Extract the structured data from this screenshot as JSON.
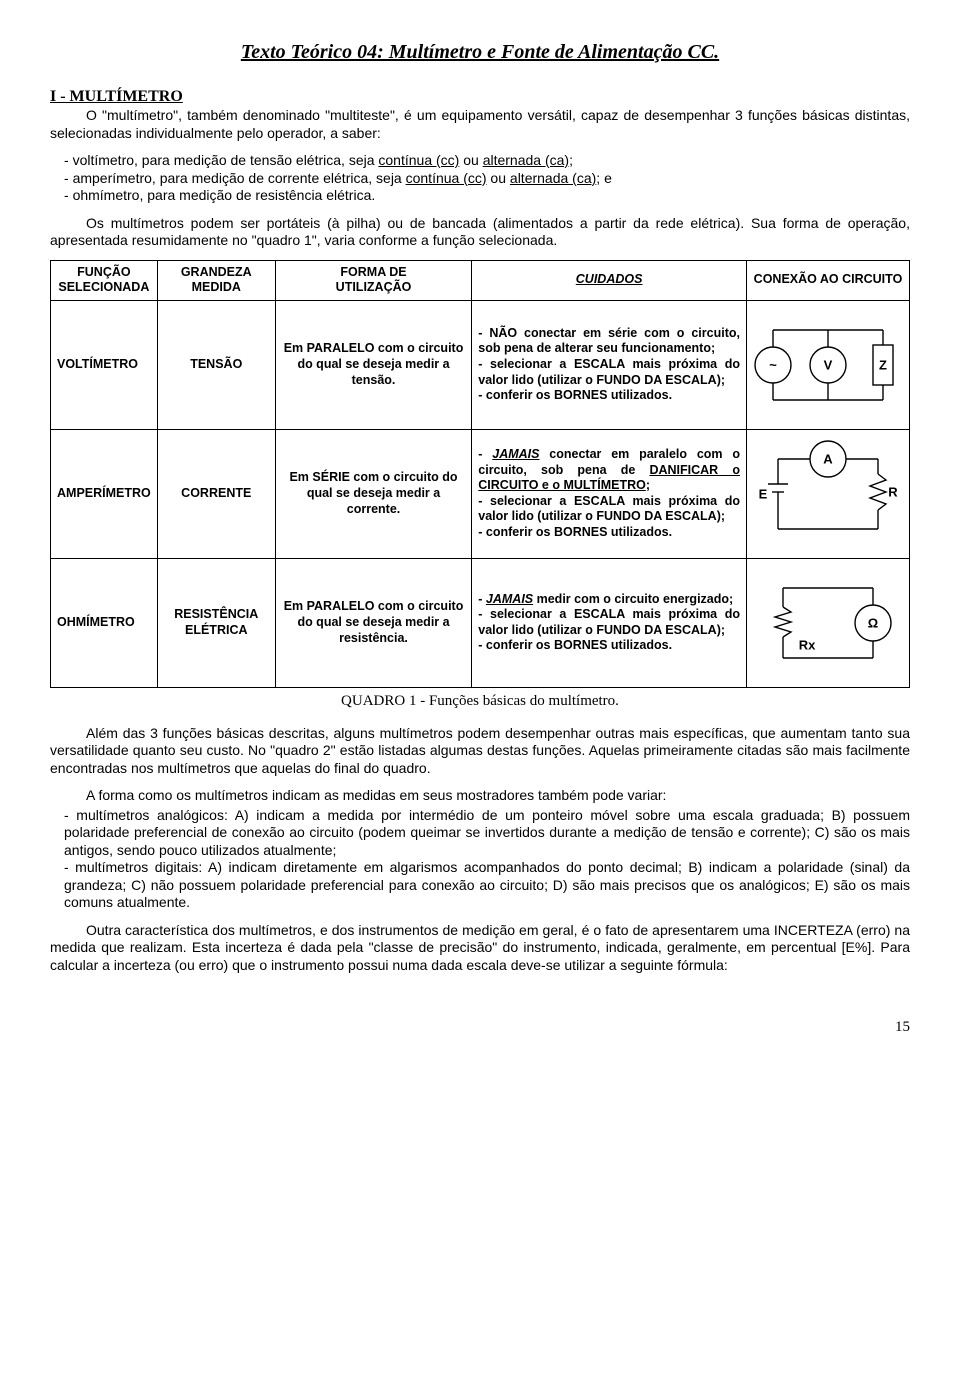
{
  "title": "Texto Teórico  04:   Multímetro e Fonte de Alimentação CC.",
  "heading1": "I - MULTÍMETRO",
  "p1_html": "O \"multímetro\", também denominado \"multiteste\", é um equipamento versátil, capaz de desempenhar 3 funções básicas distintas, selecionadas individualmente pelo operador, a saber:",
  "list1": {
    "a": "voltímetro, para medição de tensão elétrica, seja    <span class='u'>contínua (cc)</span>  ou    <span class='u'>alternada (ca)</span>;",
    "b": "amperímetro, para medição de corrente elétrica, seja <span class='u'>contínua (cc)</span> ou <span class='u'>alternada (ca)</span>; e",
    "c": "ohmímetro, para medição de resistência elétrica."
  },
  "p2": "Os multímetros podem ser portáteis (à pilha) ou de bancada (alimentados a partir da rede elétrica). Sua forma de operação, apresentada resumidamente no \"quadro 1\", varia conforme a função selecionada.",
  "table_headers": {
    "c1a": "FUNÇÃO",
    "c1b": "SELECIONADA",
    "c2a": "GRANDEZA",
    "c2b": "MEDIDA",
    "c3a": "FORMA DE",
    "c3b": "UTILIZAÇÃO",
    "c4": "CUIDADOS",
    "c5": "CONEXÃO AO CIRCUITO"
  },
  "rows": [
    {
      "func": "VOLTÍMETRO",
      "grand": "TENSÃO",
      "forma": "Em PARALELO com o circuito do qual se deseja medir a tensão.",
      "cuid": "- NÃO conectar em série com o circuito, sob pena de alterar seu funcionamento;<br>- selecionar a ESCALA mais próxima do valor lido (utilizar o FUNDO DA ESCALA);<br>-  conferir  os  BORNES utilizados.",
      "svg": {
        "type": "volt",
        "labels": {
          "src": "~",
          "meter": "V",
          "load": "Z"
        }
      }
    },
    {
      "func": "AMPERÍMETRO",
      "grand": "CORRENTE",
      "forma": "Em SÉRIE com o circuito do qual se deseja medir a corrente.",
      "cuid": "- <b><i><span class='u'>JAMAIS</span></i></b> conectar em paralelo com o circuito, sob pena de <span class='u'>DANIFICAR o CIRCUITO e o MULTÍMETRO</span>;<br>- selecionar a ESCALA mais próxima do valor lido (utilizar o FUNDO DA ESCALA);<br>-  conferir  os  BORNES utilizados.",
      "svg": {
        "type": "amp",
        "labels": {
          "src": "E",
          "meter": "A",
          "load": "R"
        }
      }
    },
    {
      "func": "OHMÍMETRO",
      "grand": "RESISTÊNCIA ELÉTRICA",
      "forma": "Em PARALELO com o circuito do qual se deseja medir a resistência.",
      "cuid": "- <b><i><span class='u'>JAMAIS</span></i></b> medir com o circuito energizado;<br>- selecionar a ESCALA mais próxima do valor lido (utilizar o FUNDO DA ESCALA);<br>-  conferir  os  BORNES utilizados.",
      "svg": {
        "type": "ohm",
        "labels": {
          "meter": "Ω",
          "load": "Rx"
        }
      }
    }
  ],
  "caption": "QUADRO 1 - Funções básicas do multímetro.",
  "p3": "Além das 3 funções básicas descritas, alguns multímetros podem desempenhar outras mais específicas, que aumentam tanto sua versatilidade quanto seu custo. No \"quadro 2\" estão listadas algumas destas funções. Aquelas primeiramente citadas são mais facilmente encontradas nos multímetros que aquelas do final do quadro.",
  "p4": "A forma como os multímetros indicam as medidas em seus mostradores também pode variar:",
  "list2": {
    "a": "multímetros analógicos:   A) indicam a medida por intermédio de um ponteiro móvel sobre uma escala graduada;  B) possuem polaridade preferencial de conexão ao circuito (podem queimar se invertidos durante a medição de tensão e corrente);   C) são os mais antigos, sendo pouco utilizados atualmente;",
    "b": "multímetros digitais:    A) indicam diretamente em algarismos acompanhados do ponto decimal;    B) indicam a polaridade (sinal) da grandeza;   C) não possuem polaridade preferencial para conexão ao circuito;  D) são mais precisos que os analógicos;  E) são os mais comuns atualmente."
  },
  "p5": "Outra característica dos multímetros, e dos instrumentos de medição em geral, é o fato de apresentarem uma INCERTEZA (erro) na medida que realizam. Esta incerteza é dada pela \"classe de precisão\" do instrumento, indicada, geralmente, em percentual [E%]. Para calcular a incerteza (ou erro) que o instrumento possui numa dada escala deve-se utilizar a seguinte fórmula:",
  "pagenum": "15",
  "style": {
    "stroke": "#000000",
    "stroke_width": 1.4,
    "font_family": "Arial",
    "font_size_svg": 13
  }
}
